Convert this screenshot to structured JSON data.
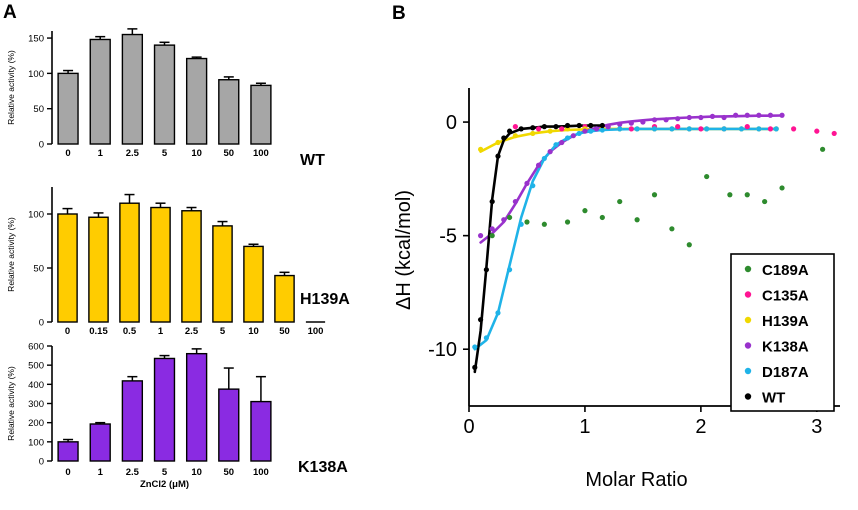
{
  "panels": {
    "a_label": "A",
    "b_label": "B"
  },
  "chart_data": [
    {
      "type": "bar",
      "panel": "A-top",
      "categories": [
        "0",
        "1",
        "2.5",
        "5",
        "10",
        "50",
        "100"
      ],
      "values": [
        100,
        148,
        155,
        140,
        121,
        91,
        83
      ],
      "errors": [
        4,
        4,
        8,
        4,
        2,
        4,
        3
      ],
      "ylabel": "Relative activity (%)",
      "ylim": [
        0,
        160
      ],
      "yticks": [
        0,
        50,
        100,
        150
      ],
      "series_label": "WT",
      "color": "#a6a6a6"
    },
    {
      "type": "bar",
      "panel": "A-middle",
      "categories": [
        "0",
        "0.15",
        "0.5",
        "1",
        "2.5",
        "5",
        "10",
        "50",
        "100"
      ],
      "values": [
        100,
        97,
        110,
        106,
        103,
        89,
        70,
        43,
        0
      ],
      "errors": [
        5,
        4,
        8,
        4,
        3,
        4,
        2,
        3,
        0
      ],
      "ylabel": "Relative activity (%)",
      "ylim": [
        0,
        125
      ],
      "yticks": [
        0,
        50,
        100
      ],
      "series_label": "H139A",
      "color": "#ffcc00"
    },
    {
      "type": "bar",
      "panel": "A-bottom",
      "categories": [
        "0",
        "1",
        "2.5",
        "5",
        "10",
        "50",
        "100"
      ],
      "values": [
        100,
        193,
        418,
        535,
        560,
        375,
        310
      ],
      "errors": [
        12,
        7,
        22,
        15,
        25,
        110,
        130
      ],
      "ylabel": "Relative activity (%)",
      "xlabel": "ZnCl2 (μM)",
      "ylim": [
        0,
        600
      ],
      "yticks": [
        0,
        100,
        200,
        300,
        400,
        500,
        600
      ],
      "series_label": "K138A",
      "color": "#8a2be2"
    },
    {
      "type": "scatter",
      "panel": "B",
      "xlabel": "Molar Ratio",
      "ylabel": "ΔH (kcal/mol)",
      "xlim": [
        0,
        3.2
      ],
      "ylim": [
        -12.5,
        1.5
      ],
      "xticks": [
        0,
        1,
        2,
        3
      ],
      "yticks": [
        0,
        -5,
        -10
      ],
      "series": [
        {
          "name": "C189A",
          "color": "#2e8b2e",
          "fit": false,
          "x": [
            0.2,
            0.35,
            0.5,
            0.65,
            0.85,
            1.0,
            1.15,
            1.3,
            1.45,
            1.6,
            1.75,
            1.9,
            2.05,
            2.25,
            2.4,
            2.55,
            2.7,
            3.05
          ],
          "y": [
            -5.0,
            -4.2,
            -4.4,
            -4.5,
            -4.4,
            -3.9,
            -4.2,
            -3.5,
            -4.3,
            -3.2,
            -4.7,
            -5.4,
            -2.4,
            -3.2,
            -3.2,
            -3.5,
            -2.9,
            -1.2
          ]
        },
        {
          "name": "C135A",
          "color": "#ff1493",
          "fit": false,
          "x": [
            0.4,
            0.6,
            0.8,
            1.0,
            1.2,
            1.4,
            1.6,
            1.8,
            2.0,
            2.2,
            2.4,
            2.6,
            2.8,
            3.0,
            3.15
          ],
          "y": [
            -0.2,
            -0.3,
            -0.3,
            -0.2,
            -0.2,
            -0.3,
            -0.2,
            -0.2,
            -0.3,
            -0.3,
            -0.2,
            -0.3,
            -0.3,
            -0.4,
            -0.5
          ]
        },
        {
          "name": "H139A",
          "color": "#f0d800",
          "fit": true,
          "x": [
            0.1,
            0.25,
            0.4,
            0.55,
            0.7,
            0.85,
            1.0,
            1.15,
            1.3,
            1.45,
            1.6,
            1.75,
            1.9,
            2.05,
            2.2,
            2.35,
            2.5,
            2.65
          ],
          "y": [
            -1.2,
            -0.9,
            -0.6,
            -0.5,
            -0.4,
            -0.3,
            -0.3,
            -0.3,
            -0.3,
            -0.3,
            -0.3,
            -0.3,
            -0.3,
            -0.3,
            -0.3,
            -0.3,
            -0.3,
            -0.3
          ],
          "fit_y": [
            -1.3,
            -0.9,
            -0.65,
            -0.5,
            -0.4,
            -0.35,
            -0.32,
            -0.3,
            -0.3,
            -0.3,
            -0.3,
            -0.3,
            -0.3,
            -0.3,
            -0.3,
            -0.3,
            -0.3,
            -0.3
          ]
        },
        {
          "name": "K138A",
          "color": "#9932cc",
          "fit": true,
          "x": [
            0.1,
            0.2,
            0.3,
            0.4,
            0.5,
            0.6,
            0.7,
            0.8,
            0.9,
            1.0,
            1.1,
            1.2,
            1.3,
            1.4,
            1.5,
            1.6,
            1.7,
            1.8,
            1.9,
            2.0,
            2.1,
            2.2,
            2.3,
            2.4,
            2.5,
            2.6,
            2.7
          ],
          "y": [
            -5.0,
            -4.7,
            -4.3,
            -3.5,
            -2.7,
            -1.9,
            -1.3,
            -0.9,
            -0.6,
            -0.4,
            -0.3,
            -0.2,
            -0.1,
            -0.05,
            0.0,
            0.1,
            0.1,
            0.15,
            0.2,
            0.2,
            0.25,
            0.2,
            0.3,
            0.3,
            0.3,
            0.3,
            0.3
          ],
          "fit_y": [
            -5.3,
            -4.9,
            -4.4,
            -3.6,
            -2.7,
            -1.9,
            -1.3,
            -0.9,
            -0.6,
            -0.4,
            -0.25,
            -0.12,
            -0.03,
            0.03,
            0.08,
            0.12,
            0.15,
            0.18,
            0.2,
            0.22,
            0.24,
            0.25,
            0.26,
            0.27,
            0.28,
            0.28,
            0.29
          ]
        },
        {
          "name": "D187A",
          "color": "#1fb3e8",
          "fit": true,
          "x": [
            0.05,
            0.15,
            0.25,
            0.35,
            0.45,
            0.55,
            0.65,
            0.75,
            0.85,
            0.95,
            1.05,
            1.15,
            1.3,
            1.45,
            1.6,
            1.75,
            1.9,
            2.05,
            2.2,
            2.35,
            2.5,
            2.65
          ],
          "y": [
            -9.9,
            -9.5,
            -8.4,
            -6.5,
            -4.5,
            -2.8,
            -1.6,
            -1.0,
            -0.7,
            -0.5,
            -0.4,
            -0.35,
            -0.3,
            -0.3,
            -0.3,
            -0.3,
            -0.3,
            -0.3,
            -0.3,
            -0.3,
            -0.3,
            -0.3
          ],
          "fit_y": [
            -10.0,
            -9.6,
            -8.4,
            -6.3,
            -4.2,
            -2.6,
            -1.6,
            -1.0,
            -0.7,
            -0.5,
            -0.4,
            -0.35,
            -0.32,
            -0.3,
            -0.3,
            -0.3,
            -0.3,
            -0.3,
            -0.3,
            -0.3,
            -0.3,
            -0.3
          ]
        },
        {
          "name": "WT",
          "color": "#000000",
          "fit": true,
          "x": [
            0.05,
            0.1,
            0.15,
            0.2,
            0.25,
            0.3,
            0.35,
            0.45,
            0.55,
            0.65,
            0.75,
            0.85,
            0.95,
            1.05,
            1.15
          ],
          "y": [
            -10.8,
            -8.7,
            -6.5,
            -3.5,
            -1.5,
            -0.7,
            -0.4,
            -0.3,
            -0.25,
            -0.2,
            -0.2,
            -0.15,
            -0.15,
            -0.15,
            -0.15
          ],
          "fit_y": [
            -11.0,
            -9.2,
            -6.4,
            -3.4,
            -1.5,
            -0.8,
            -0.5,
            -0.3,
            -0.25,
            -0.2,
            -0.2,
            -0.18,
            -0.16,
            -0.15,
            -0.15
          ]
        }
      ],
      "legend": [
        "C189A",
        "C135A",
        "H139A",
        "K138A",
        "D187A",
        "WT"
      ]
    }
  ]
}
